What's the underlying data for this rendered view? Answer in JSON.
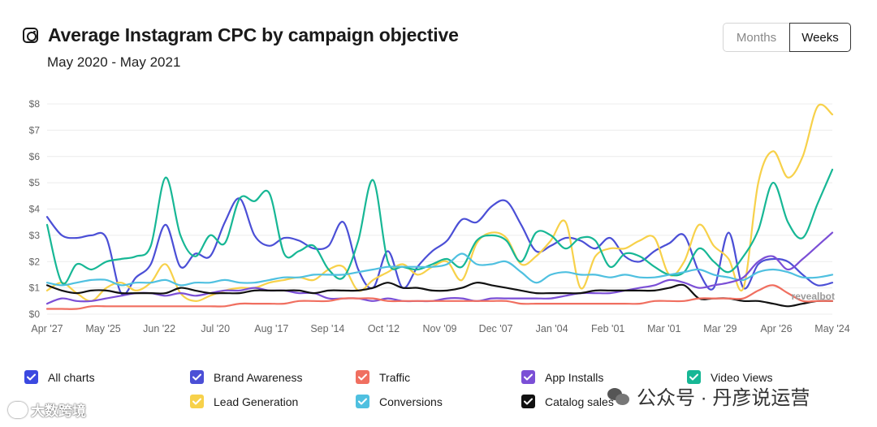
{
  "header": {
    "title": "Average Instagram CPC by campaign objective",
    "subtitle": "May 2020 - May 2021"
  },
  "toggle": {
    "months_label": "Months",
    "weeks_label": "Weeks",
    "selected": "Weeks"
  },
  "chart_data": {
    "type": "line",
    "title": "Average Instagram CPC by campaign objective",
    "subtitle": "May 2020 - May 2021",
    "xlabel": "",
    "ylabel": "",
    "ylim": [
      0,
      8
    ],
    "y_ticks": [
      "$0",
      "$1",
      "$2",
      "$3",
      "$4",
      "$5",
      "$6",
      "$7",
      "$8"
    ],
    "x_tick_labels": [
      "Apr '27",
      "May '25",
      "Jun '22",
      "Jul '20",
      "Aug '17",
      "Sep '14",
      "Oct '12",
      "Nov '09",
      "Dec '07",
      "Jan '04",
      "Feb '01",
      "Mar '01",
      "Mar '29",
      "Apr '26",
      "May '24"
    ],
    "grid": true,
    "annotation": "revealbot",
    "series": [
      {
        "name": "Brand Awareness",
        "color": "#4b4fd6",
        "values": [
          3.7,
          3.0,
          2.9,
          3.0,
          2.9,
          0.8,
          1.4,
          1.9,
          3.4,
          1.8,
          2.3,
          2.2,
          3.5,
          4.4,
          3.0,
          2.6,
          2.9,
          2.8,
          2.5,
          2.6,
          3.5,
          1.7,
          1.0,
          2.4,
          1.0,
          1.8,
          2.4,
          2.8,
          3.6,
          3.5,
          4.1,
          4.3,
          3.4,
          2.4,
          2.6,
          2.9,
          2.8,
          2.5,
          2.9,
          2.2,
          2.0,
          2.4,
          2.7,
          3.0,
          1.6,
          1.0,
          3.1,
          1.0,
          1.9,
          2.1,
          2.0,
          1.5,
          1.1,
          1.2
        ]
      },
      {
        "name": "Lead Generation",
        "color": "#f7d14a",
        "values": [
          0.9,
          1.2,
          0.8,
          0.5,
          1.0,
          1.2,
          0.9,
          1.2,
          1.9,
          0.8,
          0.5,
          0.7,
          0.9,
          1.0,
          1.0,
          1.2,
          1.3,
          1.4,
          1.3,
          1.7,
          1.8,
          0.9,
          1.3,
          1.6,
          1.9,
          1.5,
          1.8,
          2.0,
          1.3,
          2.7,
          3.1,
          2.9,
          1.9,
          2.2,
          2.8,
          3.5,
          1.0,
          2.2,
          2.5,
          2.5,
          2.8,
          2.9,
          1.5,
          2.0,
          3.4,
          2.6,
          2.1,
          1.0,
          5.0,
          6.2,
          5.2,
          6.0,
          7.9,
          7.6
        ]
      },
      {
        "name": "Video Views",
        "color": "#17b795",
        "values": [
          3.4,
          1.2,
          1.9,
          1.7,
          2.0,
          2.1,
          2.2,
          2.6,
          5.2,
          3.0,
          2.2,
          3.0,
          2.7,
          4.4,
          4.3,
          4.6,
          2.3,
          2.4,
          2.6,
          1.7,
          1.4,
          2.8,
          5.1,
          2.0,
          1.8,
          1.7,
          1.9,
          2.1,
          1.8,
          2.8,
          3.0,
          2.8,
          2.0,
          3.1,
          3.0,
          2.5,
          2.9,
          2.8,
          1.8,
          2.3,
          2.2,
          1.8,
          1.5,
          1.6,
          2.5,
          2.0,
          1.6,
          2.2,
          3.2,
          5.0,
          3.5,
          2.9,
          4.2,
          5.5
        ]
      },
      {
        "name": "Conversions",
        "color": "#4fc0e0",
        "values": [
          1.2,
          1.1,
          1.2,
          1.3,
          1.3,
          1.1,
          1.2,
          1.2,
          1.3,
          1.1,
          1.2,
          1.2,
          1.3,
          1.2,
          1.2,
          1.3,
          1.4,
          1.4,
          1.5,
          1.5,
          1.5,
          1.6,
          1.7,
          1.8,
          1.8,
          1.8,
          1.8,
          1.9,
          2.3,
          1.9,
          1.9,
          2.0,
          1.6,
          1.2,
          1.5,
          1.6,
          1.5,
          1.5,
          1.4,
          1.5,
          1.4,
          1.4,
          1.5,
          1.6,
          1.7,
          1.5,
          1.4,
          1.3,
          1.6,
          1.7,
          1.6,
          1.4,
          1.4,
          1.5
        ]
      },
      {
        "name": "App Installs",
        "color": "#7b4fd6",
        "values": [
          0.4,
          0.6,
          0.5,
          0.5,
          0.6,
          0.7,
          0.8,
          0.8,
          0.7,
          0.8,
          0.7,
          0.8,
          0.9,
          0.9,
          1.0,
          0.9,
          0.9,
          0.8,
          0.8,
          0.6,
          0.6,
          0.6,
          0.5,
          0.6,
          0.5,
          0.5,
          0.5,
          0.6,
          0.6,
          0.5,
          0.6,
          0.6,
          0.6,
          0.6,
          0.6,
          0.7,
          0.8,
          0.8,
          0.8,
          0.9,
          1.0,
          1.1,
          1.3,
          1.2,
          1.0,
          1.1,
          1.2,
          1.4,
          2.0,
          2.2,
          1.7,
          2.1,
          2.6,
          3.1
        ]
      },
      {
        "name": "Catalog sales",
        "color": "#111111",
        "values": [
          1.1,
          0.9,
          0.8,
          0.9,
          0.9,
          0.8,
          0.8,
          0.8,
          0.8,
          1.0,
          0.9,
          0.8,
          0.8,
          0.8,
          0.9,
          0.9,
          0.9,
          0.9,
          0.8,
          0.9,
          0.9,
          0.9,
          1.0,
          1.2,
          1.0,
          1.0,
          0.9,
          0.9,
          1.0,
          1.2,
          1.1,
          1.0,
          0.9,
          0.8,
          0.8,
          0.8,
          0.8,
          0.9,
          0.9,
          0.9,
          0.9,
          0.9,
          1.0,
          1.1,
          0.6,
          0.6,
          0.6,
          0.5,
          0.5,
          0.4,
          0.3,
          0.4,
          0.5,
          0.5
        ]
      },
      {
        "name": "Traffic",
        "color": "#f06f60",
        "values": [
          0.2,
          0.2,
          0.2,
          0.3,
          0.3,
          0.3,
          0.3,
          0.3,
          0.3,
          0.3,
          0.3,
          0.3,
          0.3,
          0.4,
          0.4,
          0.4,
          0.4,
          0.5,
          0.5,
          0.5,
          0.6,
          0.6,
          0.6,
          0.5,
          0.5,
          0.5,
          0.5,
          0.5,
          0.5,
          0.5,
          0.5,
          0.5,
          0.4,
          0.4,
          0.4,
          0.4,
          0.4,
          0.4,
          0.4,
          0.4,
          0.4,
          0.5,
          0.5,
          0.5,
          0.6,
          0.6,
          0.6,
          0.6,
          0.9,
          1.1,
          0.8,
          0.5,
          0.5,
          0.5
        ]
      }
    ]
  },
  "legend": [
    {
      "label": "All charts",
      "color": "#3b49e0"
    },
    {
      "label": "Brand Awareness",
      "color": "#4b4fd6"
    },
    {
      "label": "Traffic",
      "color": "#f06f60"
    },
    {
      "label": "App Installs",
      "color": "#7b4fd6"
    },
    {
      "label": "Video Views",
      "color": "#17b795"
    },
    {
      "label": "Lead Generation",
      "color": "#f7d14a"
    },
    {
      "label": "Conversions",
      "color": "#4fc0e0"
    },
    {
      "label": "Catalog sales",
      "color": "#111111"
    }
  ],
  "watermarks": {
    "left": "大数跨境",
    "right": "公众号 · 丹彦说运营"
  }
}
